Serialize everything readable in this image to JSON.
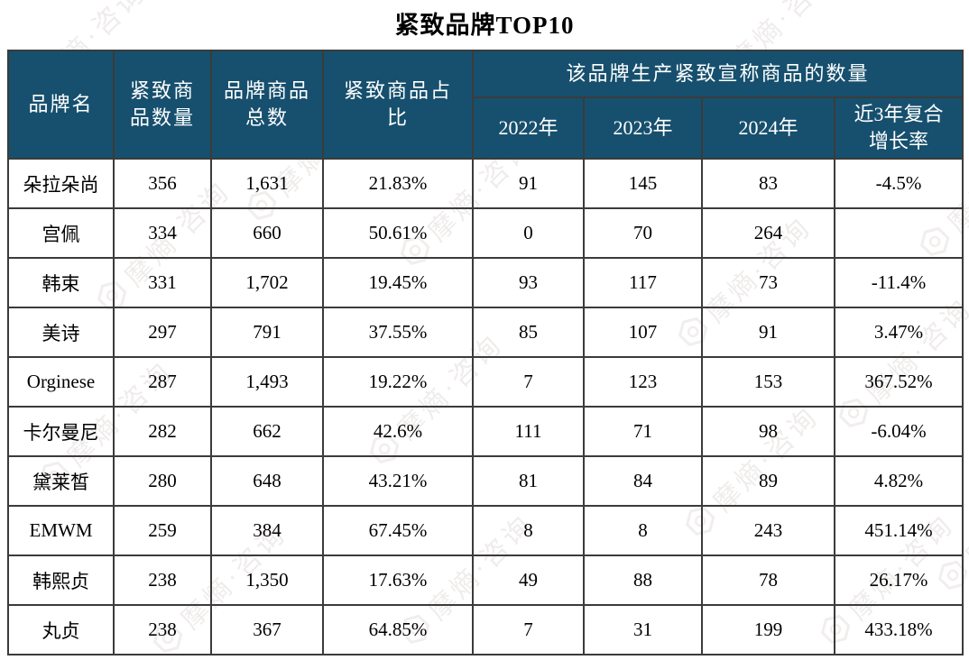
{
  "title": "紧致品牌TOP10",
  "watermark": {
    "text": "摩熵·咨询"
  },
  "colors": {
    "header_bg": "#17506E",
    "header_text": "#FFFFFF",
    "border": "#3B3B3B",
    "body_text": "#000000"
  },
  "table": {
    "header": {
      "brand": "品牌名",
      "firm_count": "紧致商\n品数量",
      "total_count": "品牌商品\n总数",
      "ratio": "紧致商品占\n比",
      "group": "该品牌生产紧致宣称商品的数量",
      "years": [
        "2022年",
        "2023年",
        "2024年"
      ],
      "cagr": "近3年复合\n增长率"
    },
    "rows": [
      {
        "brand": "朵拉朵尚",
        "firm_count": "356",
        "total_count": "1,631",
        "ratio": "21.83%",
        "y2022": "91",
        "y2023": "145",
        "y2024": "83",
        "cagr": "-4.5%"
      },
      {
        "brand": "宫佩",
        "firm_count": "334",
        "total_count": "660",
        "ratio": "50.61%",
        "y2022": "0",
        "y2023": "70",
        "y2024": "264",
        "cagr": ""
      },
      {
        "brand": "韩束",
        "firm_count": "331",
        "total_count": "1,702",
        "ratio": "19.45%",
        "y2022": "93",
        "y2023": "117",
        "y2024": "73",
        "cagr": "-11.4%"
      },
      {
        "brand": "美诗",
        "firm_count": "297",
        "total_count": "791",
        "ratio": "37.55%",
        "y2022": "85",
        "y2023": "107",
        "y2024": "91",
        "cagr": "3.47%"
      },
      {
        "brand": "Orginese",
        "firm_count": "287",
        "total_count": "1,493",
        "ratio": "19.22%",
        "y2022": "7",
        "y2023": "123",
        "y2024": "153",
        "cagr": "367.52%"
      },
      {
        "brand": "卡尔曼尼",
        "firm_count": "282",
        "total_count": "662",
        "ratio": "42.6%",
        "y2022": "111",
        "y2023": "71",
        "y2024": "98",
        "cagr": "-6.04%"
      },
      {
        "brand": "黛莱皙",
        "firm_count": "280",
        "total_count": "648",
        "ratio": "43.21%",
        "y2022": "81",
        "y2023": "84",
        "y2024": "89",
        "cagr": "4.82%"
      },
      {
        "brand": "EMWM",
        "firm_count": "259",
        "total_count": "384",
        "ratio": "67.45%",
        "y2022": "8",
        "y2023": "8",
        "y2024": "243",
        "cagr": "451.14%"
      },
      {
        "brand": "韩熙贞",
        "firm_count": "238",
        "total_count": "1,350",
        "ratio": "17.63%",
        "y2022": "49",
        "y2023": "88",
        "y2024": "78",
        "cagr": "26.17%"
      },
      {
        "brand": "丸贞",
        "firm_count": "238",
        "total_count": "367",
        "ratio": "64.85%",
        "y2022": "7",
        "y2023": "31",
        "y2024": "199",
        "cagr": "433.18%"
      }
    ]
  }
}
